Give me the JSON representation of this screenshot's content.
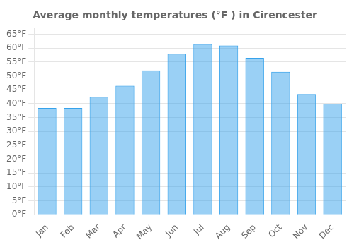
{
  "chart_data": {
    "type": "bar",
    "title": "Average monthly temperatures (°F ) in Cirencester",
    "categories": [
      "Jan",
      "Feb",
      "Mar",
      "Apr",
      "May",
      "Jun",
      "Jul",
      "Aug",
      "Sep",
      "Oct",
      "Nov",
      "Dec"
    ],
    "values": [
      38.5,
      38.5,
      42.5,
      46.5,
      52.0,
      58.0,
      61.5,
      61.0,
      56.5,
      51.5,
      43.5,
      40.0
    ],
    "ylim": [
      0,
      67
    ],
    "yticks": [
      {
        "value": 0,
        "label": "0°F"
      },
      {
        "value": 5,
        "label": "5°F"
      },
      {
        "value": 10,
        "label": "10°F"
      },
      {
        "value": 15,
        "label": "15°F"
      },
      {
        "value": 20,
        "label": "20°F"
      },
      {
        "value": 25,
        "label": "25°F"
      },
      {
        "value": 30,
        "label": "30°F"
      },
      {
        "value": 35,
        "label": "35°F"
      },
      {
        "value": 40,
        "label": "40°F"
      },
      {
        "value": 45,
        "label": "45°F"
      },
      {
        "value": 50,
        "label": "50°F"
      },
      {
        "value": 55,
        "label": "55°F"
      },
      {
        "value": 60,
        "label": "60°F"
      },
      {
        "value": 65,
        "label": "65°F"
      }
    ],
    "grid": true
  }
}
